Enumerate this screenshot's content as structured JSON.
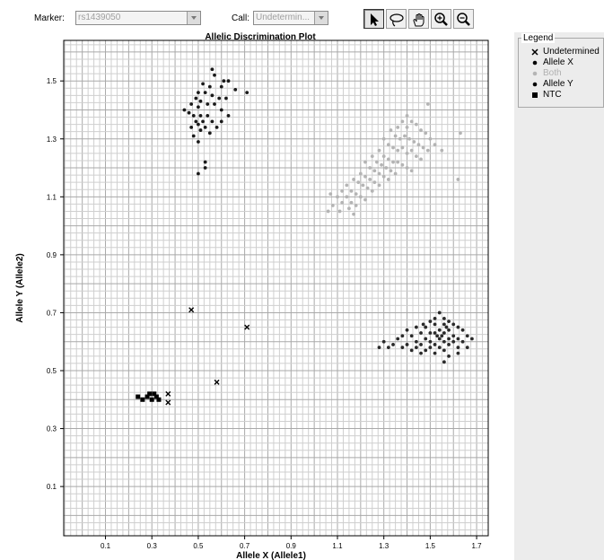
{
  "toolbar": {
    "marker_label": "Marker:",
    "marker_value": "rs1439050",
    "call_label": "Call:",
    "call_value": "Undetermin..."
  },
  "tools": [
    "arrow-select-icon",
    "lasso-icon",
    "hand-pan-icon",
    "zoom-in-icon",
    "zoom-out-icon"
  ],
  "legend": {
    "title": "Legend",
    "items": [
      {
        "label": "Undetermined",
        "marker": "x",
        "color": "#000000"
      },
      {
        "label": "Allele X",
        "marker": "dot",
        "color": "#000000"
      },
      {
        "label": "Both",
        "marker": "dot",
        "color": "#b4b4b4"
      },
      {
        "label": "Allele Y",
        "marker": "dot",
        "color": "#000000"
      },
      {
        "label": "NTC",
        "marker": "square",
        "color": "#000000"
      }
    ]
  },
  "chart_data": {
    "type": "scatter",
    "title": "Allelic Discrimination Plot",
    "xlabel": "Allele X (Allele1)",
    "ylabel": "Allele Y (Allele2)",
    "xlim": [
      -0.08,
      1.75
    ],
    "ylim": [
      -0.07,
      1.64
    ],
    "xticks": [
      0.1,
      0.3,
      0.5,
      0.7,
      0.9,
      1.1,
      1.3,
      1.5,
      1.7
    ],
    "yticks": [
      0.1,
      0.3,
      0.5,
      0.7,
      0.9,
      1.1,
      1.3,
      1.5
    ],
    "tick_labels_x": [
      "0.1",
      "0.3",
      "0.5",
      "0.7",
      "0.9",
      "1.1",
      "1.3",
      "1.5",
      "1.7"
    ],
    "tick_labels_y": [
      "0.1",
      "0.3",
      "0.5",
      "0.7",
      "0.9",
      "1.1",
      "1.3",
      "1.5"
    ],
    "grid": true,
    "legend_position": "right",
    "series": [
      {
        "name": "Undetermined",
        "marker": "x",
        "color": "#000000",
        "points": [
          [
            0.47,
            0.71
          ],
          [
            0.71,
            0.65
          ],
          [
            0.58,
            0.46
          ],
          [
            0.37,
            0.42
          ],
          [
            0.37,
            0.39
          ]
        ]
      },
      {
        "name": "NTC",
        "marker": "square",
        "color": "#000000",
        "points": [
          [
            0.24,
            0.41
          ],
          [
            0.26,
            0.4
          ],
          [
            0.28,
            0.41
          ],
          [
            0.3,
            0.4
          ],
          [
            0.31,
            0.42
          ],
          [
            0.32,
            0.41
          ],
          [
            0.29,
            0.42
          ],
          [
            0.33,
            0.4
          ]
        ]
      },
      {
        "name": "Allele Y",
        "marker": "dot",
        "color": "#1a1a1a",
        "points": [
          [
            0.56,
            1.54
          ],
          [
            0.57,
            1.52
          ],
          [
            0.61,
            1.5
          ],
          [
            0.63,
            1.5
          ],
          [
            0.66,
            1.47
          ],
          [
            0.71,
            1.46
          ],
          [
            0.52,
            1.49
          ],
          [
            0.55,
            1.48
          ],
          [
            0.6,
            1.48
          ],
          [
            0.5,
            1.46
          ],
          [
            0.53,
            1.46
          ],
          [
            0.56,
            1.45
          ],
          [
            0.59,
            1.44
          ],
          [
            0.62,
            1.44
          ],
          [
            0.49,
            1.44
          ],
          [
            0.51,
            1.43
          ],
          [
            0.54,
            1.42
          ],
          [
            0.57,
            1.42
          ],
          [
            0.6,
            1.4
          ],
          [
            0.47,
            1.42
          ],
          [
            0.5,
            1.41
          ],
          [
            0.44,
            1.4
          ],
          [
            0.46,
            1.39
          ],
          [
            0.48,
            1.38
          ],
          [
            0.51,
            1.38
          ],
          [
            0.54,
            1.38
          ],
          [
            0.49,
            1.36
          ],
          [
            0.52,
            1.36
          ],
          [
            0.56,
            1.36
          ],
          [
            0.6,
            1.36
          ],
          [
            0.63,
            1.38
          ],
          [
            0.47,
            1.34
          ],
          [
            0.5,
            1.35
          ],
          [
            0.53,
            1.34
          ],
          [
            0.55,
            1.32
          ],
          [
            0.58,
            1.34
          ],
          [
            0.51,
            1.33
          ],
          [
            0.48,
            1.31
          ],
          [
            0.5,
            1.29
          ],
          [
            0.53,
            1.22
          ],
          [
            0.53,
            1.2
          ],
          [
            0.5,
            1.18
          ]
        ]
      },
      {
        "name": "Both",
        "marker": "dot",
        "color": "#b4b4b4",
        "points": [
          [
            1.49,
            1.42
          ],
          [
            1.63,
            1.32
          ],
          [
            1.62,
            1.16
          ],
          [
            1.4,
            1.38
          ],
          [
            1.42,
            1.36
          ],
          [
            1.38,
            1.36
          ],
          [
            1.36,
            1.34
          ],
          [
            1.4,
            1.34
          ],
          [
            1.44,
            1.35
          ],
          [
            1.46,
            1.33
          ],
          [
            1.48,
            1.32
          ],
          [
            1.5,
            1.3
          ],
          [
            1.52,
            1.28
          ],
          [
            1.55,
            1.26
          ],
          [
            1.33,
            1.33
          ],
          [
            1.35,
            1.31
          ],
          [
            1.37,
            1.3
          ],
          [
            1.39,
            1.31
          ],
          [
            1.41,
            1.3
          ],
          [
            1.43,
            1.29
          ],
          [
            1.45,
            1.28
          ],
          [
            1.47,
            1.27
          ],
          [
            1.49,
            1.26
          ],
          [
            1.3,
            1.3
          ],
          [
            1.32,
            1.28
          ],
          [
            1.34,
            1.27
          ],
          [
            1.36,
            1.26
          ],
          [
            1.38,
            1.27
          ],
          [
            1.4,
            1.25
          ],
          [
            1.42,
            1.26
          ],
          [
            1.44,
            1.24
          ],
          [
            1.46,
            1.23
          ],
          [
            1.28,
            1.26
          ],
          [
            1.3,
            1.24
          ],
          [
            1.32,
            1.23
          ],
          [
            1.34,
            1.22
          ],
          [
            1.36,
            1.22
          ],
          [
            1.38,
            1.21
          ],
          [
            1.4,
            1.2
          ],
          [
            1.42,
            1.19
          ],
          [
            1.25,
            1.24
          ],
          [
            1.27,
            1.22
          ],
          [
            1.29,
            1.21
          ],
          [
            1.31,
            1.2
          ],
          [
            1.33,
            1.19
          ],
          [
            1.35,
            1.18
          ],
          [
            1.22,
            1.22
          ],
          [
            1.24,
            1.2
          ],
          [
            1.26,
            1.19
          ],
          [
            1.28,
            1.18
          ],
          [
            1.3,
            1.17
          ],
          [
            1.32,
            1.16
          ],
          [
            1.2,
            1.18
          ],
          [
            1.22,
            1.17
          ],
          [
            1.24,
            1.16
          ],
          [
            1.26,
            1.15
          ],
          [
            1.28,
            1.14
          ],
          [
            1.17,
            1.16
          ],
          [
            1.19,
            1.15
          ],
          [
            1.21,
            1.14
          ],
          [
            1.23,
            1.13
          ],
          [
            1.25,
            1.12
          ],
          [
            1.14,
            1.14
          ],
          [
            1.16,
            1.12
          ],
          [
            1.18,
            1.11
          ],
          [
            1.2,
            1.1
          ],
          [
            1.22,
            1.09
          ],
          [
            1.12,
            1.12
          ],
          [
            1.14,
            1.1
          ],
          [
            1.16,
            1.08
          ],
          [
            1.18,
            1.07
          ],
          [
            1.1,
            1.1
          ],
          [
            1.12,
            1.08
          ],
          [
            1.15,
            1.06
          ],
          [
            1.08,
            1.07
          ],
          [
            1.06,
            1.05
          ],
          [
            1.11,
            1.05
          ],
          [
            1.17,
            1.04
          ],
          [
            1.07,
            1.11
          ]
        ]
      },
      {
        "name": "Allele X",
        "marker": "dot",
        "color": "#2a2a2a",
        "points": [
          [
            1.54,
            0.7
          ],
          [
            1.52,
            0.68
          ],
          [
            1.56,
            0.68
          ],
          [
            1.5,
            0.67
          ],
          [
            1.58,
            0.67
          ],
          [
            1.47,
            0.66
          ],
          [
            1.52,
            0.66
          ],
          [
            1.56,
            0.66
          ],
          [
            1.6,
            0.66
          ],
          [
            1.62,
            0.65
          ],
          [
            1.44,
            0.65
          ],
          [
            1.48,
            0.65
          ],
          [
            1.54,
            0.64
          ],
          [
            1.58,
            0.64
          ],
          [
            1.64,
            0.64
          ],
          [
            1.4,
            0.64
          ],
          [
            1.46,
            0.63
          ],
          [
            1.5,
            0.63
          ],
          [
            1.52,
            0.63
          ],
          [
            1.56,
            0.63
          ],
          [
            1.6,
            0.62
          ],
          [
            1.66,
            0.62
          ],
          [
            1.38,
            0.62
          ],
          [
            1.42,
            0.62
          ],
          [
            1.48,
            0.61
          ],
          [
            1.54,
            0.61
          ],
          [
            1.58,
            0.61
          ],
          [
            1.62,
            0.61
          ],
          [
            1.36,
            0.61
          ],
          [
            1.44,
            0.6
          ],
          [
            1.5,
            0.6
          ],
          [
            1.56,
            0.6
          ],
          [
            1.6,
            0.6
          ],
          [
            1.64,
            0.6
          ],
          [
            1.4,
            0.59
          ],
          [
            1.46,
            0.59
          ],
          [
            1.52,
            0.59
          ],
          [
            1.58,
            0.59
          ],
          [
            1.38,
            0.58
          ],
          [
            1.44,
            0.58
          ],
          [
            1.5,
            0.58
          ],
          [
            1.54,
            0.58
          ],
          [
            1.62,
            0.58
          ],
          [
            1.42,
            0.57
          ],
          [
            1.48,
            0.57
          ],
          [
            1.56,
            0.57
          ],
          [
            1.46,
            0.56
          ],
          [
            1.52,
            0.56
          ],
          [
            1.34,
            0.59
          ],
          [
            1.3,
            0.6
          ],
          [
            1.28,
            0.58
          ],
          [
            1.32,
            0.58
          ],
          [
            1.58,
            0.55
          ],
          [
            1.56,
            0.53
          ],
          [
            1.62,
            0.56
          ],
          [
            1.66,
            0.58
          ],
          [
            1.68,
            0.61
          ],
          [
            1.55,
            0.62
          ],
          [
            1.53,
            0.62
          ],
          [
            1.57,
            0.65
          ]
        ]
      }
    ]
  }
}
